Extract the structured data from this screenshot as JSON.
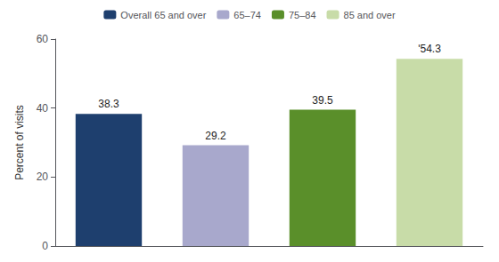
{
  "chart_data": {
    "type": "bar",
    "categories": [
      "Overall 65 and over",
      "65–74",
      "75–84",
      "85 and over"
    ],
    "values": [
      38.3,
      29.2,
      39.5,
      54.3
    ],
    "value_labels": [
      "38.3",
      "29.2",
      "39.5",
      "ʹ54.3"
    ],
    "colors": [
      "#1e3f6e",
      "#a8a8cc",
      "#5a8f2a",
      "#c8dca8"
    ],
    "ylabel": "Percent of visits",
    "ylim": [
      0,
      60
    ],
    "yticks": [
      0,
      20,
      40,
      60
    ],
    "grid": false,
    "legend": "top",
    "data_labels": true,
    "tick_labels": "y"
  }
}
